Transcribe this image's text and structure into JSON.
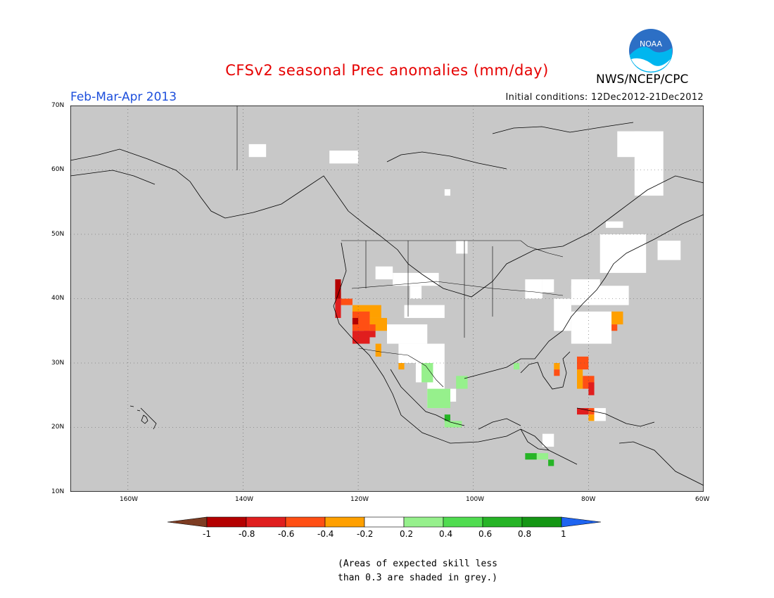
{
  "title": "CFSv2 seasonal Prec anomalies (mm/day)",
  "period": "Feb-Mar-Apr 2013",
  "initial_conditions": "Initial conditions: 12Dec2012-21Dec2012",
  "agency": "NWS/NCEP/CPC",
  "logo_text": "NOAA",
  "map": {
    "lon_range": [
      -170,
      -60
    ],
    "lat_range": [
      10,
      70
    ],
    "lat_labels": [
      "70N",
      "60N",
      "50N",
      "40N",
      "30N",
      "20N",
      "10N"
    ],
    "lon_labels": [
      "160W",
      "140W",
      "120W",
      "100W",
      "80W",
      "60W"
    ],
    "background_color": "#c8c8c8"
  },
  "colorbar": {
    "labels": [
      "-1",
      "-0.8",
      "-0.6",
      "-0.4",
      "-0.2",
      "0.2",
      "0.4",
      "0.6",
      "0.8",
      "1"
    ],
    "colors": [
      "#7d3c22",
      "#b40000",
      "#e01e1e",
      "#ff4f14",
      "#ffa000",
      "#ffffff",
      "#96f08c",
      "#50dc50",
      "#26b426",
      "#149614",
      "#1e64f0"
    ]
  },
  "anomalies": {
    "white": [
      [
        -139,
        62,
        3,
        2
      ],
      [
        -125,
        61,
        5,
        2
      ],
      [
        -105,
        56,
        1,
        1
      ],
      [
        -75,
        62,
        4,
        4
      ],
      [
        -72,
        56,
        5,
        10
      ],
      [
        -77,
        51,
        3,
        1
      ],
      [
        -114,
        42,
        8,
        2
      ],
      [
        -103,
        47,
        2,
        2
      ],
      [
        -117,
        43,
        3,
        2
      ],
      [
        -111,
        40,
        2,
        2
      ],
      [
        -112,
        37,
        7,
        2
      ],
      [
        -115,
        33,
        7,
        3
      ],
      [
        -113,
        30,
        8,
        3
      ],
      [
        -110,
        27,
        5,
        3
      ],
      [
        -108,
        23,
        3,
        4
      ],
      [
        -105,
        24,
        2,
        2
      ],
      [
        -91,
        40,
        3,
        3
      ],
      [
        -86,
        35,
        3,
        5
      ],
      [
        -83,
        33,
        7,
        5
      ],
      [
        -83,
        39,
        10,
        3
      ],
      [
        -78,
        44,
        8,
        6
      ],
      [
        -83,
        41,
        5,
        2
      ],
      [
        -88,
        41,
        2,
        2
      ],
      [
        -68,
        46,
        4,
        3
      ],
      [
        -80,
        21,
        3,
        2
      ],
      [
        -88,
        17,
        2,
        2
      ]
    ],
    "lightgreen": [
      [
        -109,
        27,
        2,
        3
      ],
      [
        -108,
        23,
        4,
        3
      ],
      [
        -105,
        20,
        3,
        1
      ],
      [
        -103,
        26,
        2,
        2
      ],
      [
        -93,
        29,
        1,
        1
      ],
      [
        -89,
        15,
        2,
        1
      ]
    ],
    "green": [
      [
        -105,
        21,
        1,
        1
      ],
      [
        -91,
        15,
        2,
        1
      ],
      [
        -87,
        14,
        1,
        1
      ]
    ],
    "orange": [
      [
        -121,
        37,
        5,
        2
      ],
      [
        -118,
        35,
        3,
        2
      ],
      [
        -117,
        31,
        1,
        2
      ],
      [
        -113,
        29,
        1,
        1
      ],
      [
        -82,
        26,
        1,
        3
      ],
      [
        -80,
        21,
        1,
        1
      ],
      [
        -76,
        36,
        2,
        2
      ],
      [
        -86,
        29,
        1,
        1
      ]
    ],
    "red_orange": [
      [
        -123,
        39,
        2,
        1
      ],
      [
        -121,
        35,
        3,
        3
      ],
      [
        -118,
        35,
        1,
        1
      ],
      [
        -82,
        29,
        2,
        2
      ],
      [
        -81,
        26,
        2,
        2
      ],
      [
        -80,
        22,
        1,
        1
      ],
      [
        -76,
        35,
        1,
        1
      ],
      [
        -86,
        28,
        1,
        1
      ]
    ],
    "red": [
      [
        -124,
        37,
        1,
        4
      ],
      [
        -121,
        33,
        3,
        2
      ],
      [
        -119,
        34,
        2,
        1
      ],
      [
        -80,
        25,
        1,
        2
      ],
      [
        -82,
        22,
        2,
        1
      ]
    ],
    "darkred": [
      [
        -124,
        40,
        1,
        3
      ],
      [
        -121,
        36,
        1,
        1
      ]
    ]
  },
  "note_lines": [
    "(Areas of expected skill less",
    "than 0.3 are shaded in grey.)"
  ]
}
